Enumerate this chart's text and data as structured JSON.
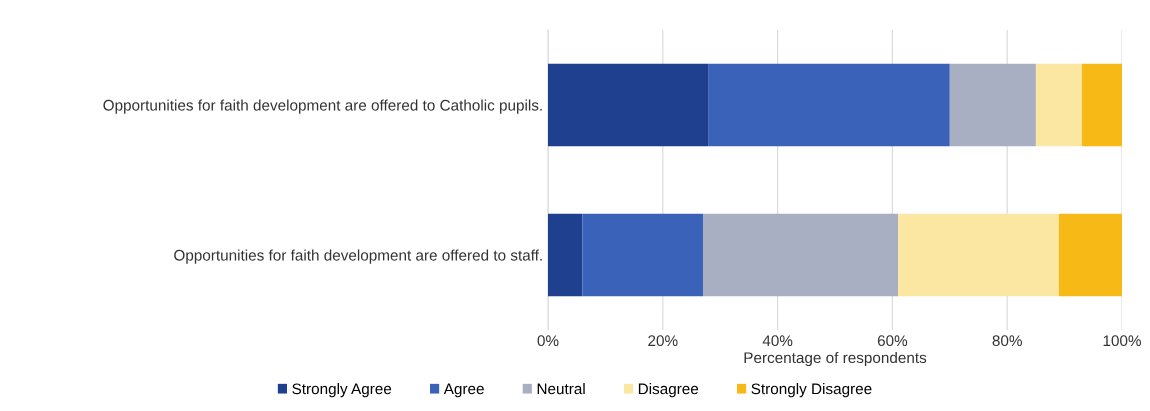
{
  "chart_data": {
    "type": "bar",
    "orientation": "horizontal",
    "stacked": true,
    "xlabel": "Percentage of respondents",
    "categories": [
      "Opportunities for faith development are offered to Catholic pupils.",
      "Opportunities for faith development are offered to staff."
    ],
    "series": [
      {
        "name": "Strongly Agree",
        "color": "#1f3f8f",
        "values": [
          28,
          6
        ]
      },
      {
        "name": "Agree",
        "color": "#3a62b8",
        "values": [
          42,
          21
        ]
      },
      {
        "name": "Neutral",
        "color": "#a9afc2",
        "values": [
          15,
          34
        ]
      },
      {
        "name": "Disagree",
        "color": "#fbe6a2",
        "values": [
          8,
          28
        ]
      },
      {
        "name": "Strongly Disagree",
        "color": "#f6b915",
        "values": [
          7,
          11
        ]
      }
    ],
    "xlim": [
      0,
      100
    ],
    "xticks": [
      {
        "value": 0,
        "label": "0%"
      },
      {
        "value": 20,
        "label": "20%"
      },
      {
        "value": 40,
        "label": "40%"
      },
      {
        "value": 60,
        "label": "60%"
      },
      {
        "value": 80,
        "label": "80%"
      },
      {
        "value": 100,
        "label": "100%"
      }
    ],
    "grid": "x",
    "legend": "bottom"
  }
}
